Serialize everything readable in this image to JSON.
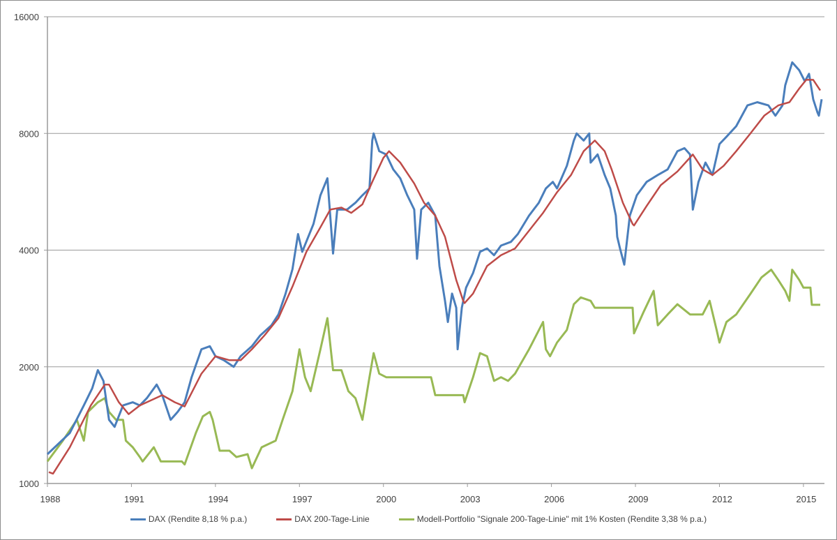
{
  "chart_data": {
    "type": "line",
    "title": "",
    "xlabel": "",
    "ylabel": "",
    "y_scale": "log",
    "ylim": [
      1000,
      16000
    ],
    "xlim": [
      1988,
      2015.75
    ],
    "y_ticks": [
      "1000",
      "2000",
      "4000",
      "8000",
      "16000"
    ],
    "y_tick_values": [
      1000,
      2000,
      4000,
      8000,
      16000
    ],
    "x_ticks": [
      "1988",
      "1991",
      "1994",
      "1997",
      "2000",
      "2003",
      "2006",
      "2009",
      "2012",
      "2015"
    ],
    "x_tick_values": [
      1988,
      1991,
      1994,
      1997,
      2000,
      2003,
      2006,
      2009,
      2012,
      2015
    ],
    "grid": "horizontal",
    "legend_position": "bottom",
    "series": [
      {
        "name": "DAX (Rendite 8,18 % p.a.)",
        "color": "#4a7ebb",
        "points": [
          [
            1988.0,
            1190
          ],
          [
            1988.8,
            1350
          ],
          [
            1989.3,
            1590
          ],
          [
            1989.6,
            1760
          ],
          [
            1989.8,
            1960
          ],
          [
            1990.0,
            1840
          ],
          [
            1990.2,
            1460
          ],
          [
            1990.4,
            1400
          ],
          [
            1990.7,
            1590
          ],
          [
            1991.05,
            1620
          ],
          [
            1991.3,
            1590
          ],
          [
            1991.55,
            1660
          ],
          [
            1991.9,
            1800
          ],
          [
            1992.1,
            1690
          ],
          [
            1992.4,
            1460
          ],
          [
            1992.65,
            1530
          ],
          [
            1992.9,
            1620
          ],
          [
            1993.15,
            1880
          ],
          [
            1993.5,
            2220
          ],
          [
            1993.8,
            2260
          ],
          [
            1994.0,
            2130
          ],
          [
            1994.3,
            2080
          ],
          [
            1994.65,
            2000
          ],
          [
            1994.9,
            2130
          ],
          [
            1995.3,
            2260
          ],
          [
            1995.6,
            2410
          ],
          [
            1996.0,
            2560
          ],
          [
            1996.25,
            2730
          ],
          [
            1996.5,
            3080
          ],
          [
            1996.75,
            3570
          ],
          [
            1996.95,
            4400
          ],
          [
            1997.1,
            3960
          ],
          [
            1997.5,
            4670
          ],
          [
            1997.75,
            5540
          ],
          [
            1998.0,
            6130
          ],
          [
            1998.2,
            3920
          ],
          [
            1998.35,
            5090
          ],
          [
            1998.7,
            5090
          ],
          [
            1999.0,
            5300
          ],
          [
            1999.25,
            5540
          ],
          [
            1999.5,
            5770
          ],
          [
            1999.6,
            7670
          ],
          [
            1999.65,
            8000
          ],
          [
            1999.85,
            7200
          ],
          [
            2000.1,
            7060
          ],
          [
            2000.35,
            6460
          ],
          [
            2000.6,
            6130
          ],
          [
            2000.85,
            5540
          ],
          [
            2001.1,
            5090
          ],
          [
            2001.2,
            3800
          ],
          [
            2001.35,
            5090
          ],
          [
            2001.6,
            5300
          ],
          [
            2001.85,
            4910
          ],
          [
            2002.0,
            3640
          ],
          [
            2002.2,
            2960
          ],
          [
            2002.3,
            2610
          ],
          [
            2002.45,
            3090
          ],
          [
            2002.6,
            2840
          ],
          [
            2002.65,
            2220
          ],
          [
            2002.8,
            2840
          ],
          [
            2002.95,
            3200
          ],
          [
            2003.2,
            3490
          ],
          [
            2003.45,
            3960
          ],
          [
            2003.7,
            4040
          ],
          [
            2003.95,
            3880
          ],
          [
            2004.2,
            4110
          ],
          [
            2004.55,
            4200
          ],
          [
            2004.8,
            4400
          ],
          [
            2005.2,
            4910
          ],
          [
            2005.55,
            5300
          ],
          [
            2005.8,
            5770
          ],
          [
            2006.05,
            6000
          ],
          [
            2006.2,
            5770
          ],
          [
            2006.55,
            6600
          ],
          [
            2006.8,
            7670
          ],
          [
            2006.9,
            8000
          ],
          [
            2007.15,
            7670
          ],
          [
            2007.35,
            8000
          ],
          [
            2007.4,
            6730
          ],
          [
            2007.65,
            7060
          ],
          [
            2007.9,
            6250
          ],
          [
            2008.1,
            5770
          ],
          [
            2008.3,
            4910
          ],
          [
            2008.35,
            4330
          ],
          [
            2008.45,
            4040
          ],
          [
            2008.6,
            3670
          ],
          [
            2008.8,
            4910
          ],
          [
            2009.05,
            5540
          ],
          [
            2009.4,
            6000
          ],
          [
            2009.8,
            6250
          ],
          [
            2010.15,
            6460
          ],
          [
            2010.5,
            7200
          ],
          [
            2010.75,
            7330
          ],
          [
            2010.95,
            7060
          ],
          [
            2011.05,
            5090
          ],
          [
            2011.25,
            6000
          ],
          [
            2011.5,
            6730
          ],
          [
            2011.75,
            6250
          ],
          [
            2012.0,
            7510
          ],
          [
            2012.25,
            7840
          ],
          [
            2012.6,
            8350
          ],
          [
            2013.0,
            9450
          ],
          [
            2013.35,
            9630
          ],
          [
            2013.75,
            9450
          ],
          [
            2014.0,
            8890
          ],
          [
            2014.25,
            9450
          ],
          [
            2014.35,
            10650
          ],
          [
            2014.6,
            12200
          ],
          [
            2014.85,
            11640
          ],
          [
            2015.05,
            10900
          ],
          [
            2015.2,
            11400
          ],
          [
            2015.35,
            9800
          ],
          [
            2015.5,
            9060
          ],
          [
            2015.55,
            8890
          ],
          [
            2015.65,
            9800
          ]
        ]
      },
      {
        "name": "DAX 200-Tage-Linie",
        "color": "#be4b48",
        "points": [
          [
            1988.05,
            1070
          ],
          [
            1988.2,
            1060
          ],
          [
            1988.8,
            1240
          ],
          [
            1989.55,
            1590
          ],
          [
            1990.05,
            1800
          ],
          [
            1990.2,
            1800
          ],
          [
            1990.55,
            1620
          ],
          [
            1990.9,
            1510
          ],
          [
            1991.3,
            1590
          ],
          [
            1992.1,
            1690
          ],
          [
            1992.55,
            1620
          ],
          [
            1992.9,
            1580
          ],
          [
            1993.5,
            1920
          ],
          [
            1994.0,
            2130
          ],
          [
            1994.5,
            2080
          ],
          [
            1994.9,
            2080
          ],
          [
            1995.3,
            2220
          ],
          [
            1995.75,
            2410
          ],
          [
            1996.25,
            2670
          ],
          [
            1996.75,
            3220
          ],
          [
            1997.25,
            3960
          ],
          [
            1997.75,
            4580
          ],
          [
            1998.1,
            5090
          ],
          [
            1998.5,
            5150
          ],
          [
            1998.85,
            4990
          ],
          [
            1999.25,
            5250
          ],
          [
            1999.6,
            6000
          ],
          [
            2000.0,
            6920
          ],
          [
            2000.2,
            7200
          ],
          [
            2000.6,
            6730
          ],
          [
            2001.1,
            5940
          ],
          [
            2001.45,
            5300
          ],
          [
            2001.85,
            4910
          ],
          [
            2002.2,
            4330
          ],
          [
            2002.6,
            3350
          ],
          [
            2002.85,
            2960
          ],
          [
            2002.9,
            2920
          ],
          [
            2003.2,
            3090
          ],
          [
            2003.7,
            3640
          ],
          [
            2004.2,
            3880
          ],
          [
            2004.7,
            4040
          ],
          [
            2005.2,
            4490
          ],
          [
            2005.7,
            4990
          ],
          [
            2006.2,
            5640
          ],
          [
            2006.7,
            6250
          ],
          [
            2007.15,
            7200
          ],
          [
            2007.55,
            7670
          ],
          [
            2007.9,
            7200
          ],
          [
            2008.15,
            6460
          ],
          [
            2008.55,
            5300
          ],
          [
            2008.9,
            4670
          ],
          [
            2008.95,
            4630
          ],
          [
            2009.4,
            5200
          ],
          [
            2009.9,
            5880
          ],
          [
            2010.5,
            6380
          ],
          [
            2011.05,
            7060
          ],
          [
            2011.4,
            6460
          ],
          [
            2011.75,
            6250
          ],
          [
            2012.15,
            6600
          ],
          [
            2012.6,
            7200
          ],
          [
            2013.1,
            7990
          ],
          [
            2013.6,
            8890
          ],
          [
            2014.1,
            9450
          ],
          [
            2014.5,
            9630
          ],
          [
            2014.85,
            10450
          ],
          [
            2015.1,
            11000
          ],
          [
            2015.35,
            11000
          ],
          [
            2015.6,
            10330
          ]
        ]
      },
      {
        "name": "Modell-Portfolio \"Signale 200-Tage-Linie\" mit 1% Kosten (Rendite 3,38 % p.a.)",
        "color": "#98b954",
        "points": [
          [
            1988.0,
            1140
          ],
          [
            1988.55,
            1290
          ],
          [
            1989.05,
            1460
          ],
          [
            1989.3,
            1290
          ],
          [
            1989.45,
            1530
          ],
          [
            1989.8,
            1620
          ],
          [
            1990.05,
            1660
          ],
          [
            1990.2,
            1530
          ],
          [
            1990.45,
            1460
          ],
          [
            1990.7,
            1460
          ],
          [
            1990.8,
            1290
          ],
          [
            1991.05,
            1240
          ],
          [
            1991.3,
            1170
          ],
          [
            1991.4,
            1140
          ],
          [
            1991.8,
            1240
          ],
          [
            1992.05,
            1140
          ],
          [
            1992.8,
            1140
          ],
          [
            1992.9,
            1120
          ],
          [
            1993.3,
            1350
          ],
          [
            1993.55,
            1490
          ],
          [
            1993.8,
            1530
          ],
          [
            1993.9,
            1460
          ],
          [
            1994.15,
            1215
          ],
          [
            1994.5,
            1215
          ],
          [
            1994.75,
            1170
          ],
          [
            1995.15,
            1190
          ],
          [
            1995.3,
            1095
          ],
          [
            1995.65,
            1240
          ],
          [
            1996.15,
            1290
          ],
          [
            1996.4,
            1460
          ],
          [
            1996.75,
            1730
          ],
          [
            1997.0,
            2220
          ],
          [
            1997.2,
            1880
          ],
          [
            1997.4,
            1730
          ],
          [
            1997.75,
            2220
          ],
          [
            1998.0,
            2670
          ],
          [
            1998.2,
            1960
          ],
          [
            1998.5,
            1960
          ],
          [
            1998.75,
            1730
          ],
          [
            1999.0,
            1660
          ],
          [
            1999.25,
            1460
          ],
          [
            1999.5,
            1880
          ],
          [
            1999.65,
            2170
          ],
          [
            1999.85,
            1920
          ],
          [
            2000.1,
            1880
          ],
          [
            2001.7,
            1880
          ],
          [
            2001.85,
            1690
          ],
          [
            2002.85,
            1690
          ],
          [
            2002.9,
            1620
          ],
          [
            2003.2,
            1880
          ],
          [
            2003.45,
            2170
          ],
          [
            2003.7,
            2130
          ],
          [
            2003.95,
            1840
          ],
          [
            2004.2,
            1880
          ],
          [
            2004.45,
            1840
          ],
          [
            2004.7,
            1920
          ],
          [
            2005.2,
            2220
          ],
          [
            2005.7,
            2610
          ],
          [
            2005.8,
            2220
          ],
          [
            2005.95,
            2130
          ],
          [
            2006.2,
            2310
          ],
          [
            2006.55,
            2490
          ],
          [
            2006.8,
            2900
          ],
          [
            2007.05,
            3020
          ],
          [
            2007.4,
            2960
          ],
          [
            2007.55,
            2840
          ],
          [
            2008.9,
            2840
          ],
          [
            2008.95,
            2440
          ],
          [
            2009.3,
            2780
          ],
          [
            2009.65,
            3140
          ],
          [
            2009.8,
            2560
          ],
          [
            2010.15,
            2730
          ],
          [
            2010.5,
            2900
          ],
          [
            2010.95,
            2730
          ],
          [
            2011.4,
            2730
          ],
          [
            2011.65,
            2960
          ],
          [
            2011.9,
            2490
          ],
          [
            2012.0,
            2310
          ],
          [
            2012.25,
            2610
          ],
          [
            2012.6,
            2730
          ],
          [
            2013.1,
            3080
          ],
          [
            2013.5,
            3400
          ],
          [
            2013.85,
            3560
          ],
          [
            2014.1,
            3350
          ],
          [
            2014.35,
            3140
          ],
          [
            2014.5,
            2960
          ],
          [
            2014.6,
            3560
          ],
          [
            2014.85,
            3350
          ],
          [
            2015.0,
            3200
          ],
          [
            2015.25,
            3200
          ],
          [
            2015.3,
            2890
          ],
          [
            2015.6,
            2890
          ]
        ]
      }
    ]
  }
}
